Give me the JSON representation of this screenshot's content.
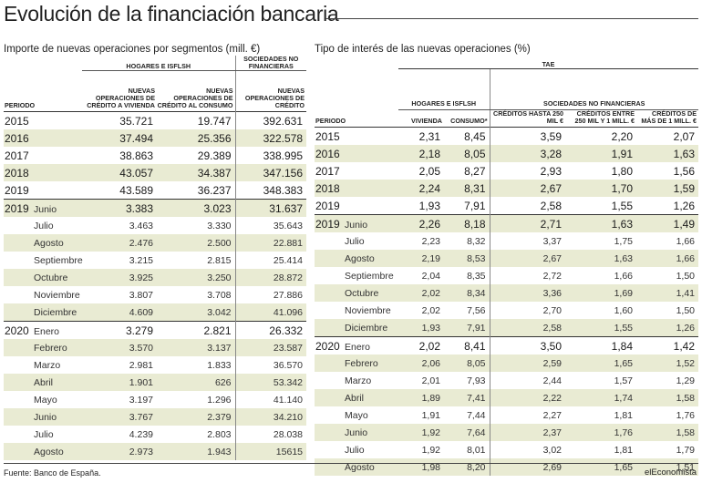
{
  "title": "Evolución de la financiación bancaria",
  "left": {
    "subtitle": "Importe de nuevas operaciones por segmentos (mill. €)",
    "group_households": "HOGARES E ISFLSH",
    "group_companies": "SOCIEDADES NO FINANCIERAS",
    "col_period": "PERIODO",
    "col_housing": "NUEVAS OPERACIONES DE CRÉDITO A VIVIENDA",
    "col_consumer": "NUEVAS OPERACIONES DE CRÉDITO AL CONSUMO",
    "col_credit": "NUEVAS OPERACIONES DE CRÉDITO",
    "rows": [
      {
        "year": "2015",
        "month": "",
        "a": "35.721",
        "b": "19.747",
        "c": "392.631"
      },
      {
        "year": "2016",
        "month": "",
        "a": "37.494",
        "b": "25.356",
        "c": "322.578"
      },
      {
        "year": "2017",
        "month": "",
        "a": "38.863",
        "b": "29.389",
        "c": "338.995"
      },
      {
        "year": "2018",
        "month": "",
        "a": "43.057",
        "b": "34.387",
        "c": "347.156"
      },
      {
        "year": "2019",
        "month": "",
        "a": "43.589",
        "b": "36.237",
        "c": "348.383"
      },
      {
        "year": "2019",
        "month": "Junio",
        "a": "3.383",
        "b": "3.023",
        "c": "31.637"
      },
      {
        "year": "",
        "month": "Julio",
        "a": "3.463",
        "b": "3.330",
        "c": "35.643"
      },
      {
        "year": "",
        "month": "Agosto",
        "a": "2.476",
        "b": "2.500",
        "c": "22.881"
      },
      {
        "year": "",
        "month": "Septiembre",
        "a": "3.215",
        "b": "2.815",
        "c": "25.414"
      },
      {
        "year": "",
        "month": "Octubre",
        "a": "3.925",
        "b": "3.250",
        "c": "28.872"
      },
      {
        "year": "",
        "month": "Noviembre",
        "a": "3.807",
        "b": "3.708",
        "c": "27.886"
      },
      {
        "year": "",
        "month": "Diciembre",
        "a": "4.609",
        "b": "3.042",
        "c": "41.096"
      },
      {
        "year": "2020",
        "month": "Enero",
        "a": "3.279",
        "b": "2.821",
        "c": "26.332"
      },
      {
        "year": "",
        "month": "Febrero",
        "a": "3.570",
        "b": "3.137",
        "c": "23.587"
      },
      {
        "year": "",
        "month": "Marzo",
        "a": "2.981",
        "b": "1.833",
        "c": "36.570"
      },
      {
        "year": "",
        "month": "Abril",
        "a": "1.901",
        "b": "626",
        "c": "53.342"
      },
      {
        "year": "",
        "month": "Mayo",
        "a": "3.197",
        "b": "1.296",
        "c": "41.140"
      },
      {
        "year": "",
        "month": "Junio",
        "a": "3.767",
        "b": "2.379",
        "c": "34.210"
      },
      {
        "year": "",
        "month": "Julio",
        "a": "4.239",
        "b": "2.803",
        "c": "28.038"
      },
      {
        "year": "",
        "month": "Agosto",
        "a": "2.973",
        "b": "1.943",
        "c": "15615"
      }
    ]
  },
  "right": {
    "subtitle": "Tipo de interés de las nuevas operaciones (%)",
    "tae": "TAE",
    "group_households": "HOGARES E ISFLSH",
    "group_companies": "SOCIEDADES NO FINANCIERAS",
    "col_period": "PERIODO",
    "col_housing": "VIVIENDA",
    "col_consumer": "CONSUMO*",
    "col_small": "CRÉDITOS HASTA 250 MIL €",
    "col_mid": "CRÉDITOS ENTRE 250 MIL Y 1 MILL. €",
    "col_large": "CRÉDITOS DE MÁS DE 1 MILL. €",
    "rows": [
      {
        "year": "2015",
        "month": "",
        "a": "2,31",
        "b": "8,45",
        "c": "3,59",
        "d": "2,20",
        "e": "2,07"
      },
      {
        "year": "2016",
        "month": "",
        "a": "2,18",
        "b": "8,05",
        "c": "3,28",
        "d": "1,91",
        "e": "1,63"
      },
      {
        "year": "2017",
        "month": "",
        "a": "2,05",
        "b": "8,27",
        "c": "2,93",
        "d": "1,80",
        "e": "1,56"
      },
      {
        "year": "2018",
        "month": "",
        "a": "2,24",
        "b": "8,31",
        "c": "2,67",
        "d": "1,70",
        "e": "1,59"
      },
      {
        "year": "2019",
        "month": "",
        "a": "1,93",
        "b": "7,91",
        "c": "2,58",
        "d": "1,55",
        "e": "1,26"
      },
      {
        "year": "2019",
        "month": "Junio",
        "a": "2,26",
        "b": "8,18",
        "c": "2,71",
        "d": "1,63",
        "e": "1,49"
      },
      {
        "year": "",
        "month": "Julio",
        "a": "2,23",
        "b": "8,32",
        "c": "3,37",
        "d": "1,75",
        "e": "1,66"
      },
      {
        "year": "",
        "month": "Agosto",
        "a": "2,19",
        "b": "8,53",
        "c": "2,67",
        "d": "1,63",
        "e": "1,66"
      },
      {
        "year": "",
        "month": "Septiembre",
        "a": "2,04",
        "b": "8,35",
        "c": "2,72",
        "d": "1,66",
        "e": "1,50"
      },
      {
        "year": "",
        "month": "Octubre",
        "a": "2,02",
        "b": "8,34",
        "c": "3,36",
        "d": "1,69",
        "e": "1,41"
      },
      {
        "year": "",
        "month": "Noviembre",
        "a": "2,02",
        "b": "7,56",
        "c": "2,70",
        "d": "1,60",
        "e": "1,50"
      },
      {
        "year": "",
        "month": "Diciembre",
        "a": "1,93",
        "b": "7,91",
        "c": "2,58",
        "d": "1,55",
        "e": "1,26"
      },
      {
        "year": "2020",
        "month": "Enero",
        "a": "2,02",
        "b": "8,41",
        "c": "3,50",
        "d": "1,84",
        "e": "1,42"
      },
      {
        "year": "",
        "month": "Febrero",
        "a": "2,06",
        "b": "8,05",
        "c": "2,59",
        "d": "1,65",
        "e": "1,52"
      },
      {
        "year": "",
        "month": "Marzo",
        "a": "2,01",
        "b": "7,93",
        "c": "2,44",
        "d": "1,57",
        "e": "1,29"
      },
      {
        "year": "",
        "month": "Abril",
        "a": "1,89",
        "b": "7,41",
        "c": "2,22",
        "d": "1,74",
        "e": "1,58"
      },
      {
        "year": "",
        "month": "Mayo",
        "a": "1,91",
        "b": "7,44",
        "c": "2,27",
        "d": "1,81",
        "e": "1,76"
      },
      {
        "year": "",
        "month": "Junio",
        "a": "1,92",
        "b": "7,64",
        "c": "2,37",
        "d": "1,76",
        "e": "1,58"
      },
      {
        "year": "",
        "month": "Julio",
        "a": "1,92",
        "b": "8,01",
        "c": "3,02",
        "d": "1,81",
        "e": "1,79"
      },
      {
        "year": "",
        "month": "Agosto",
        "a": "1,98",
        "b": "8,20",
        "c": "2,69",
        "d": "1,65",
        "e": "1,51"
      }
    ]
  },
  "footer": {
    "source": "Fuente: Banco de España.",
    "brand": "elEconomista"
  },
  "colors": {
    "shade": "#e9ebd3",
    "text": "#1a1a1a"
  }
}
